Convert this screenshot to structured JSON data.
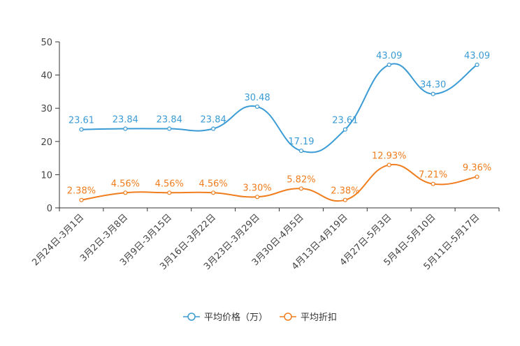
{
  "chart_data": {
    "type": "line",
    "title": "",
    "xlabel": "",
    "ylabel": "",
    "ylim": [
      0,
      50
    ],
    "yticks": [
      0,
      10,
      20,
      30,
      40,
      50
    ],
    "categories": [
      "2月24日-3月1日",
      "3月2日-3月8日",
      "3月9日-3月15日",
      "3月16日-3月22日",
      "3月23日-3月29日",
      "3月30日-4月5日",
      "4月13日-4月19日",
      "4月27日-5月3日",
      "5月4日-5月10日",
      "5月11日-5月17日"
    ],
    "series": [
      {
        "name": "平均价格（万）",
        "color": "#3a9bd5",
        "values": [
          23.61,
          23.84,
          23.84,
          23.84,
          30.48,
          17.19,
          23.61,
          43.09,
          34.3,
          43.09
        ],
        "labels": [
          "23.61",
          "23.84",
          "23.84",
          "23.84",
          "30.48",
          "17.19",
          "23.61",
          "43.09",
          "34.30",
          "43.09"
        ]
      },
      {
        "name": "平均折扣",
        "color": "#f07d1e",
        "values": [
          2.38,
          4.56,
          4.56,
          4.56,
          3.3,
          5.82,
          2.38,
          12.93,
          7.21,
          9.36
        ],
        "labels": [
          "2.38%",
          "4.56%",
          "4.56%",
          "4.56%",
          "3.30%",
          "5.82%",
          "2.38%",
          "12.93%",
          "7.21%",
          "9.36%"
        ]
      }
    ],
    "legend_position": "bottom-center",
    "grid": false
  }
}
